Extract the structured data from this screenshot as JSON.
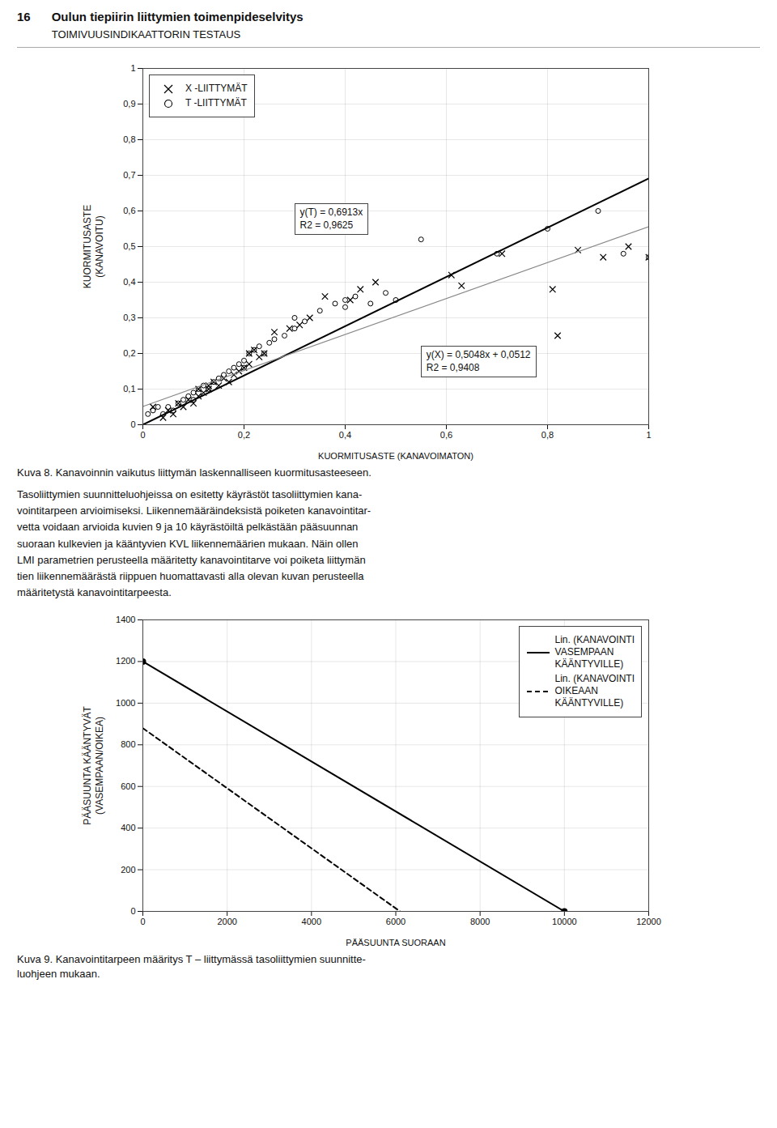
{
  "page_number": "16",
  "title": "Oulun tiepiirin liittymien toimenpideselvitys",
  "subtitle": "TOIMIVUUSINDIKAATTORIN TESTAUS",
  "body_text": "Tasoliittymien suunnitteluohjeissa on esitetty käyrästöt tasoliittymien kana-\nvointitarpeen arvioimiseksi. Liikennemääräindeksistä poiketen kanavointitar-\nvetta voidaan arvioida kuvien 9 ja 10 käyrästöiltä pelkästään pääsuunnan\nsuoraan kulkevien ja kääntyvien KVL liikennemäärien mukaan. Näin ollen\nLMI parametrien perusteella määritetty kanavointitarve voi poiketa liittymän\ntien liikennemäärästä riippuen huomattavasti alla olevan kuvan perusteella\nmääritetystä kanavointitarpeesta.",
  "chart_data": [
    {
      "type": "scatter",
      "xlabel": "KUORMITUSASTE (KANAVOIMATON)",
      "ylabel": "KUORMITUSASTE\n(KANAVOITU)",
      "xlim": [
        0,
        1
      ],
      "ylim": [
        0,
        1
      ],
      "xticks": [
        0,
        {
          "value": 0.2,
          "label": "0,2"
        },
        {
          "value": 0.4,
          "label": "0,4"
        },
        {
          "value": 0.6,
          "label": "0,6"
        },
        {
          "value": 0.8,
          "label": "0,8"
        },
        1
      ],
      "yticks": [
        0,
        {
          "value": 0.1,
          "label": "0,1"
        },
        {
          "value": 0.2,
          "label": "0,2"
        },
        {
          "value": 0.3,
          "label": "0,3"
        },
        {
          "value": 0.4,
          "label": "0,4"
        },
        {
          "value": 0.5,
          "label": "0,5"
        },
        {
          "value": 0.6,
          "label": "0,6"
        },
        {
          "value": 0.7,
          "label": "0,7"
        },
        {
          "value": 0.8,
          "label": "0,8"
        },
        {
          "value": 0.9,
          "label": "0,9"
        },
        1
      ],
      "grid": true,
      "legend": "upper left",
      "annotations": [
        "y(T) = 0,6913x\nR2 = 0,9625",
        "y(X) = 0,5048x + 0,0512\nR2 = 0,9408"
      ],
      "series": [
        {
          "name": "X -LIITTYMÄT",
          "type": "scatter",
          "marker": "x",
          "color": "#000000",
          "x": [
            0.02,
            0.04,
            0.05,
            0.06,
            0.07,
            0.08,
            0.09,
            0.1,
            0.11,
            0.11,
            0.12,
            0.13,
            0.13,
            0.14,
            0.15,
            0.16,
            0.17,
            0.18,
            0.19,
            0.2,
            0.21,
            0.21,
            0.22,
            0.23,
            0.24,
            0.26,
            0.29,
            0.31,
            0.33,
            0.36,
            0.41,
            0.43,
            0.46,
            0.61,
            0.63,
            0.71,
            0.81,
            0.82,
            0.86,
            0.91,
            0.96,
            1
          ],
          "values": [
            0.05,
            0.02,
            0.04,
            0.03,
            0.06,
            0.05,
            0.07,
            0.06,
            0.08,
            0.1,
            0.09,
            0.11,
            0.1,
            0.12,
            0.11,
            0.13,
            0.12,
            0.14,
            0.15,
            0.16,
            0.17,
            0.2,
            0.21,
            0.19,
            0.2,
            0.26,
            0.27,
            0.28,
            0.3,
            0.36,
            0.35,
            0.38,
            0.4,
            0.42,
            0.39,
            0.48,
            0.38,
            0.25,
            0.49,
            0.47,
            0.5,
            0.47
          ]
        },
        {
          "name": "T -LIITTYMÄT",
          "type": "scatter",
          "marker": "o",
          "color": "#000000",
          "x": [
            0.01,
            0.02,
            0.03,
            0.04,
            0.05,
            0.06,
            0.07,
            0.08,
            0.09,
            0.1,
            0.1,
            0.11,
            0.12,
            0.13,
            0.14,
            0.15,
            0.16,
            0.17,
            0.18,
            0.19,
            0.2,
            0.2,
            0.21,
            0.22,
            0.23,
            0.24,
            0.25,
            0.26,
            0.28,
            0.3,
            0.3,
            0.32,
            0.35,
            0.38,
            0.4,
            0.4,
            0.42,
            0.45,
            0.48,
            0.5,
            0.55,
            0.7,
            0.8,
            0.9,
            0.95,
            1
          ],
          "values": [
            0.03,
            0.04,
            0.05,
            0.03,
            0.05,
            0.04,
            0.06,
            0.07,
            0.08,
            0.09,
            0.07,
            0.1,
            0.11,
            0.1,
            0.12,
            0.13,
            0.14,
            0.15,
            0.16,
            0.17,
            0.18,
            0.16,
            0.2,
            0.21,
            0.22,
            0.2,
            0.23,
            0.24,
            0.25,
            0.27,
            0.3,
            0.29,
            0.32,
            0.34,
            0.33,
            0.35,
            0.36,
            0.34,
            0.37,
            0.35,
            0.52,
            0.48,
            0.55,
            0.6,
            0.48,
            0.47
          ]
        },
        {
          "type": "line",
          "line_style": "solid",
          "color": "#000000",
          "x": [
            0,
            1
          ],
          "values": [
            0,
            0.6913
          ]
        },
        {
          "type": "line",
          "line_style": "solid",
          "color": "#888888",
          "x": [
            0,
            1
          ],
          "values": [
            0.0512,
            0.556
          ]
        }
      ],
      "caption": "Kuva 8. Kanavoinnin vaikutus liittymän laskennalliseen kuormitusasteeseen."
    },
    {
      "type": "line",
      "xlabel": "PÄÄSUUNTA SUORAAN",
      "ylabel": "PÄÄSUUNTA KÄÄNTYVÄT\n(VASEMPAAN/OIKEA)",
      "xlim": [
        0,
        12000
      ],
      "ylim": [
        0,
        1400
      ],
      "xticks": [
        0,
        2000,
        4000,
        6000,
        8000,
        10000,
        12000
      ],
      "yticks": [
        0,
        200,
        400,
        600,
        800,
        1000,
        1200,
        1400
      ],
      "grid": true,
      "legend": "upper right",
      "series": [
        {
          "name": "Lin. (KANAVOINTI\nVASEMPAAN\nKÄÄNTYVILLE)",
          "type": "line",
          "line_style": "solid",
          "marker": "o",
          "color": "#000000",
          "x": [
            0,
            10000
          ],
          "values": [
            1200,
            0
          ]
        },
        {
          "name": "Lin. (KANAVOINTI\nOIKEAAN\nKÄÄNTYVILLE)",
          "type": "line",
          "line_style": "dashed",
          "color": "#000000",
          "x": [
            0,
            6100
          ],
          "values": [
            880,
            0
          ]
        }
      ],
      "caption": "Kuva 9. Kanavointitarpeen määritys T – liittymässä tasoliittymien suunnitte-\nluohjeen mukaan."
    }
  ]
}
